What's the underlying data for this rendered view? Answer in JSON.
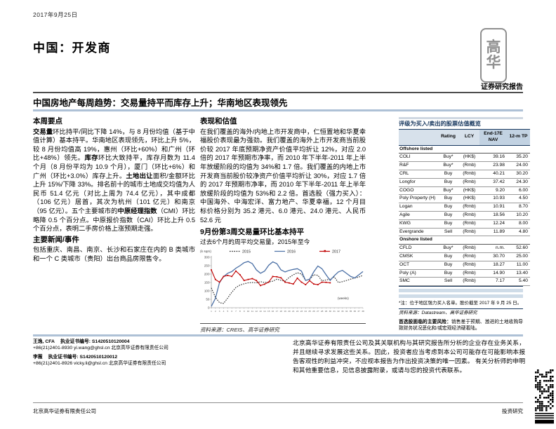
{
  "page": {
    "date": "2017年9月25日",
    "title": "中国：开发商",
    "report_type": "证券研究报告",
    "headline": "中国房地产每周趋势：交易量持平而库存上升；华南地区表现领先",
    "logo_top": "高",
    "logo_bottom": "华",
    "footer_left": "北京高华证券有限责任公司",
    "footer_right": "投资研究"
  },
  "left_column": {
    "heading": "本周要点",
    "highlights_segments": [
      {
        "t": "交易量",
        "b": true
      },
      {
        "t": "环比持平/同比下降 14%，与 8 月份均值（基于中值计算）基本持平。华南地区表现领先，环比上升 5%，较 8 月份均值高 19%，惠州（环比+60%）和广州（环比+48%）领先。",
        "b": false
      },
      {
        "t": "库存",
        "b": true
      },
      {
        "t": "环比大致持平，库存月数为 11.4 个月（8 月份平均为 10.9 个月），厦门（环比+6%）和广州（环比+3.0%）库存上升。",
        "b": false
      },
      {
        "t": "土地出让",
        "b": true
      },
      {
        "t": "面积/金额环比上升 15%/下降 33%。排名前十的城市土地成交均值为人民币 51.4 亿元（对比上周为 74.4 亿元），其中成都（106 亿元）居首，其次为杭州（101 亿元）和南京（95 亿元）。五个主要城市的",
        "b": false
      },
      {
        "t": "中原经理指数",
        "b": true
      },
      {
        "t": "（CMI）环比略降 0.5 个百分点。中原报价指数（CAI）环比上升 0.5 个百分点，表明二手房价格上涨预期走强。",
        "b": false
      }
    ],
    "news_heading": "主要新闻/事件",
    "news_text": "包括重庆、南昌、南京、长沙和石家庄在内的 B 类城市和一个 C 类城市（贵阳）出台商品房限售令。"
  },
  "mid_column": {
    "heading": "表现和估值",
    "valuation_text": "在我们覆盖的海外/内地上市开发商中，仁恒置地和华夏幸福股价表现最为强劲。我们覆盖的海外上市开发商当前股价较 2017 年底预期净资产价值平均折让 12%，对应 2.0 倍的 2017 年预期市净率，而 2010 年下半年-2011 年上半年放缓阶段的均值为 34%和 1.7 倍。我们覆盖的内地上市开发商当前股价较净资产价值平均折让 30%，对应 1.7 倍的 2017 年预期市净率，而 2010 年下半年-2011 年上半年放缓阶段的均值为 53%和 2.2 倍。首选股（强力买入）：中国海外、中海宏洋、富力地产、华夏幸福，12 个月目标价格分别为 35.2 港元、6.0 港元、24.0 港元、人民币 52.6 元"
  },
  "chart_data": {
    "type": "line",
    "title": "9月份第3周交易量环比基本持平",
    "subtitle": "过去6个月的周平均交易量，2015年至今",
    "unit_label": "(k sqm)",
    "x_annotation": "(weeks)",
    "source": "资料来源：CREIS、高华证券研究",
    "ylim": [
      0,
      300
    ],
    "yticks": [
      0,
      50,
      100,
      150,
      200,
      250,
      300
    ],
    "legend_position": "top",
    "x": [
      1,
      2,
      3,
      4,
      5,
      6,
      7,
      8,
      9,
      10,
      11,
      12,
      13,
      14,
      15,
      16,
      17,
      18,
      19,
      20,
      21,
      22,
      23,
      24,
      25,
      26,
      27,
      28,
      29,
      30,
      31,
      32,
      33,
      34,
      35,
      36,
      37,
      38
    ],
    "series": [
      {
        "name": "2015",
        "color": "#262626",
        "style": "dotted",
        "values": [
          118,
          62,
          30,
          26,
          58,
          92,
          120,
          135,
          142,
          148,
          150,
          148,
          155,
          150,
          153,
          158,
          170,
          163,
          158,
          180,
          196,
          208,
          200,
          163,
          168,
          196,
          193,
          160,
          165,
          170,
          183,
          150,
          155,
          162,
          170,
          176,
          183,
          192
        ]
      },
      {
        "name": "2016",
        "color": "#4a6fa5",
        "style": "solid",
        "values": [
          8,
          55,
          150,
          185,
          205,
          215,
          235,
          250,
          268,
          275,
          262,
          225,
          205,
          218,
          252,
          273,
          262,
          225,
          213,
          222,
          228,
          232,
          218,
          162,
          170,
          213,
          248,
          232,
          196,
          162,
          190,
          213,
          222,
          204,
          186,
          177,
          196,
          215
        ]
      },
      {
        "name": "2017",
        "color": "#c00000",
        "style": "marker",
        "values": [
          225,
          168,
          152,
          186,
          192,
          186,
          218,
          196,
          162,
          168,
          173,
          162,
          132,
          140,
          152,
          186,
          184,
          178,
          152,
          147,
          141,
          176,
          152,
          137,
          161,
          141,
          137,
          152,
          151,
          148,
          null,
          null,
          null,
          null,
          null,
          null,
          null,
          null
        ]
      }
    ]
  },
  "table": {
    "title": "评级为买入/卖出的股票估值概览",
    "headers": [
      "",
      "Rating",
      "LCY",
      "End-17E NAV",
      "12-m TP"
    ],
    "groups": [
      {
        "label": "Offshore listed",
        "rows": [
          [
            "COLI",
            "Buy*",
            "(HK$)",
            "39.16",
            "35.20"
          ],
          [
            "R&F",
            "Buy*",
            "(Rmb)",
            "23.98",
            "24.00"
          ],
          [
            "CRL",
            "Buy",
            "(Rmb)",
            "40.21",
            "30.20"
          ],
          [
            "Longfor",
            "Buy",
            "(Rmb)",
            "37.42",
            "24.30"
          ],
          [
            "COGO",
            "Buy*",
            "(HK$)",
            "9.20",
            "6.00"
          ],
          [
            "Poly Property (H)",
            "Buy",
            "(HK$)",
            "10.93",
            "4.50"
          ],
          [
            "Logan",
            "Buy",
            "(Rmb)",
            "10.91",
            "8.70"
          ],
          [
            "Agile",
            "Buy",
            "(Rmb)",
            "18.56",
            "10.20"
          ],
          [
            "KWG",
            "Buy",
            "(Rmb)",
            "12.24",
            "8.00"
          ],
          [
            "Evergrande",
            "Sell",
            "(Rmb)",
            "11.89",
            "4.80"
          ]
        ]
      },
      {
        "label": "Onshore listed",
        "rows": [
          [
            "CFLD",
            "Buy*",
            "(Rmb)",
            "n.m.",
            "52.60"
          ],
          [
            "CMSK",
            "Buy",
            "(Rmb)",
            "30.70",
            "25.00"
          ],
          [
            "OCT",
            "Buy",
            "(Rmb)",
            "18.27",
            "11.00"
          ],
          [
            "Poly (A)",
            "Buy",
            "(Rmb)",
            "14.90",
            "13.40"
          ],
          [
            "SMC",
            "Sell",
            "(Rmb)",
            "7.17",
            "5.40"
          ]
        ]
      }
    ],
    "footnote": "*注：位于地区强力买入名单。股价截至 2017 年 9 月 25 日。",
    "source": "资料来源：Datastream、高华证券研究",
    "risk_lead": "首选股面临的主要风险：",
    "risk_text": "销售差于预期、激进的土地收购导致财务状况恶化和/或宏观经济硬着陆。"
  },
  "footer": {
    "analysts": [
      {
        "name": "王逸, CFA",
        "cert": "执业证书编号: S1420510120004",
        "contact": "+86(21)2401-8930  yi.wang@ghsl.cn  北京高华证券有限责任公司"
      },
      {
        "name": "李薇",
        "cert": "执业证书编号: S1420510120012",
        "contact": "+86(21)2401-8926  vicky.li@ghsl.cn  北京高华证券有限责任公司"
      }
    ],
    "disclaimer": "北京高华证券有限责任公司及其关联机构与其研究报告所分析的企业存在业务关系，并且继续寻求发展这些关系。因此，投资者应当考虑到本公司可能存在可能影响本报告客观性的利益冲突，不应视本报告为作出投资决策的唯一因素。 有关分析师的申明和其他重要信息，见信息披露附录，或请与您的投资代表联系。"
  }
}
